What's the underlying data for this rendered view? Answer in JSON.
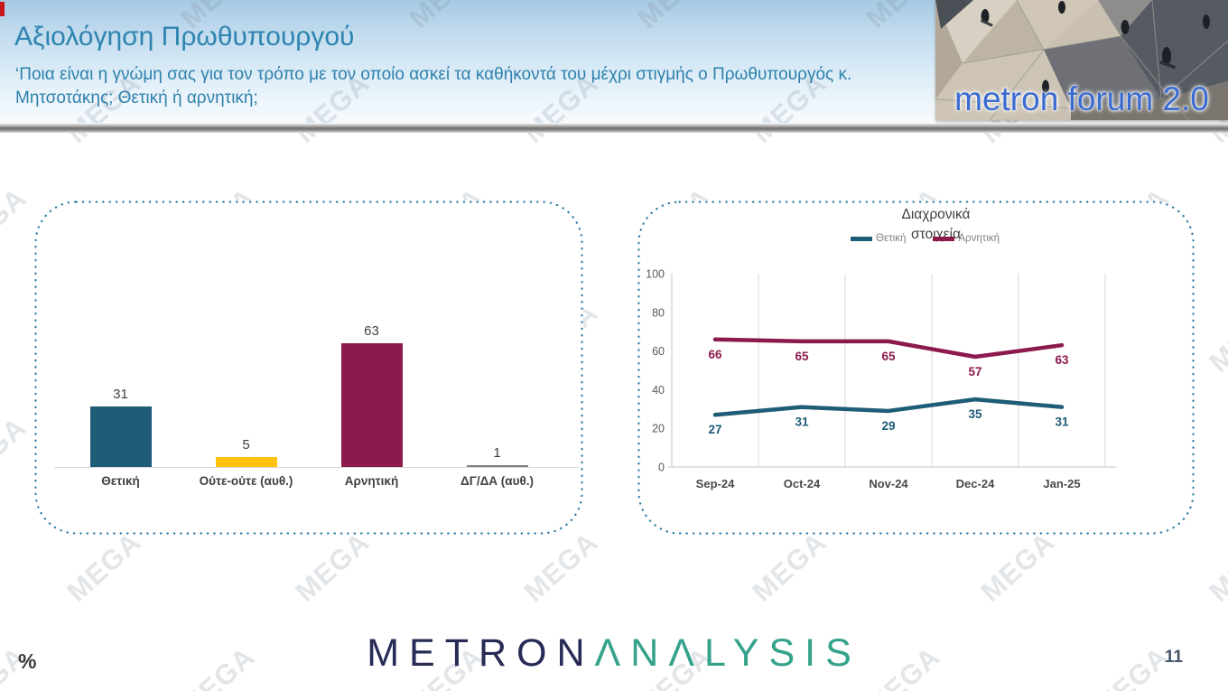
{
  "watermark": {
    "text": "MEGA"
  },
  "header": {
    "title": "Αξιολόγηση Πρωθυπουργού",
    "subtitle_line1": "‘Ποια είναι η γνώμη σας για τον τρόπο με τον οποίο ασκεί τα καθήκοντά του μέχρι στιγμής ο Πρωθυπουργός κ.",
    "subtitle_line2": "Μητσοτάκης; Θετική ή αρνητική;",
    "logo_text": "metron forum 2.0"
  },
  "footer": {
    "unit_label": "%",
    "page_number": "11",
    "brand_first": "METRON",
    "brand_second": "ΛNΛLYSIS"
  },
  "colors": {
    "positive": "#1E5C77",
    "neutral": "#FFC20E",
    "negative": "#8C1A4E",
    "dk_da": "#808080",
    "panel_border": "#2E7BA6",
    "axis_text": "#595959",
    "label_text": "#404040",
    "gridline": "#d9d9d9"
  },
  "chart_data": [
    {
      "id": "pm-rating-bar",
      "type": "bar",
      "categories": [
        "Θετική",
        "Ούτε-ούτε (αυθ.)",
        "Αρνητική",
        "ΔΓ/ΔΑ (αυθ.)"
      ],
      "values": [
        31,
        5,
        63,
        1
      ],
      "bar_colors": [
        "#1E5C77",
        "#FFC20E",
        "#8C1A4E",
        "#808080"
      ],
      "ylim": [
        0,
        100
      ],
      "value_labels": true,
      "grid": "off"
    },
    {
      "id": "pm-rating-trend",
      "type": "line",
      "title": "Διαχρονικά στοιχεία",
      "title_lines": [
        "Διαχρονικά",
        "στοιχεία"
      ],
      "categories": [
        "Sep-24",
        "Oct-24",
        "Nov-24",
        "Dec-24",
        "Jan-25"
      ],
      "series": [
        {
          "name": "Θετική",
          "color": "#1E5C77",
          "values": [
            27,
            31,
            29,
            35,
            31
          ]
        },
        {
          "name": "Αρνητική",
          "color": "#8C1A4E",
          "values": [
            66,
            65,
            65,
            57,
            63
          ]
        }
      ],
      "yticks": [
        0,
        20,
        40,
        60,
        80,
        100
      ],
      "ylim": [
        0,
        100
      ],
      "legend_position": "top",
      "grid": "vertical"
    }
  ]
}
